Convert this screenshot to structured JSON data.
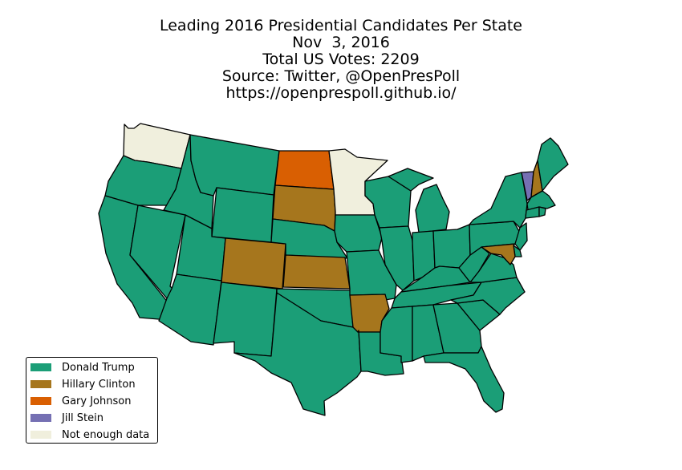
{
  "title": {
    "lines": [
      "Leading 2016 Presidential Candidates Per State",
      "Nov  3, 2016",
      "Total US Votes: 2209",
      "Source: Twitter, @OpenPresPoll",
      "https://openprespoll.github.io/"
    ]
  },
  "colors": {
    "trump": "#1b9e77",
    "clinton": "#a6761d",
    "johnson": "#d95f02",
    "stein": "#7570b3",
    "nodata": "#f0efdd"
  },
  "legend": [
    {
      "key": "trump",
      "label": "Donald Trump"
    },
    {
      "key": "clinton",
      "label": "Hillary Clinton"
    },
    {
      "key": "johnson",
      "label": "Gary Johnson"
    },
    {
      "key": "stein",
      "label": "Jill Stein"
    },
    {
      "key": "nodata",
      "label": "Not enough data"
    }
  ],
  "states": {
    "WA": "nodata",
    "OR": "trump",
    "CA": "trump",
    "NV": "trump",
    "ID": "trump",
    "MT": "trump",
    "WY": "trump",
    "UT": "trump",
    "AZ": "trump",
    "CO": "clinton",
    "NM": "trump",
    "ND": "johnson",
    "SD": "clinton",
    "NE": "trump",
    "KS": "clinton",
    "OK": "trump",
    "TX": "trump",
    "MN": "nodata",
    "IA": "trump",
    "MO": "trump",
    "AR": "clinton",
    "LA": "trump",
    "WI": "trump",
    "IL": "trump",
    "MI": "trump",
    "IN": "trump",
    "OH": "trump",
    "KY": "trump",
    "TN": "trump",
    "MS": "trump",
    "AL": "trump",
    "GA": "trump",
    "FL": "trump",
    "SC": "trump",
    "NC": "trump",
    "VA": "trump",
    "WV": "trump",
    "PA": "trump",
    "NY": "trump",
    "VT": "stein",
    "NH": "clinton",
    "ME": "trump",
    "MA": "trump",
    "CT": "trump",
    "RI": "trump",
    "NJ": "trump",
    "DE": "trump",
    "MD": "clinton"
  }
}
